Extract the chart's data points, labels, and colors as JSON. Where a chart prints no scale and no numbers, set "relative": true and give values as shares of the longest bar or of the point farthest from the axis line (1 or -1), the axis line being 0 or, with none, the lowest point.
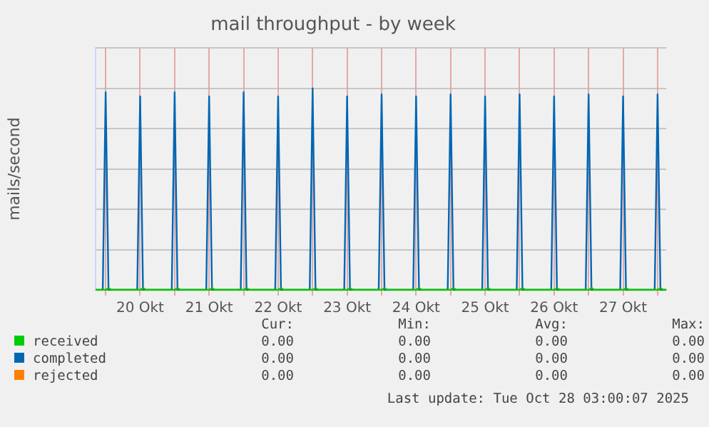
{
  "chart_data": {
    "type": "line",
    "title": "mail throughput - by week",
    "ylabel": "mails/second",
    "relative": true,
    "grid": true,
    "legend": "bottom",
    "marker": "none",
    "x": [
      "2025-10-19T20:30",
      "2025-10-19T23:00",
      "2025-10-20T00:00",
      "2025-10-20T01:00",
      "2025-10-20T02:00",
      "2025-10-20T11:00",
      "2025-10-20T12:00",
      "2025-10-20T13:00",
      "2025-10-20T14:00",
      "2025-10-20T23:00",
      "2025-10-21T00:00",
      "2025-10-21T01:00",
      "2025-10-21T02:00",
      "2025-10-21T11:00",
      "2025-10-21T12:00",
      "2025-10-21T13:00",
      "2025-10-21T14:00",
      "2025-10-21T23:00",
      "2025-10-22T00:00",
      "2025-10-22T01:00",
      "2025-10-22T02:00",
      "2025-10-22T11:00",
      "2025-10-22T12:00",
      "2025-10-22T13:00",
      "2025-10-22T14:00",
      "2025-10-22T23:00",
      "2025-10-23T00:00",
      "2025-10-23T01:00",
      "2025-10-23T02:00",
      "2025-10-23T11:00",
      "2025-10-23T12:00",
      "2025-10-23T13:00",
      "2025-10-23T14:00",
      "2025-10-23T23:00",
      "2025-10-24T00:00",
      "2025-10-24T01:00",
      "2025-10-24T02:00",
      "2025-10-24T11:00",
      "2025-10-24T12:00",
      "2025-10-24T13:00",
      "2025-10-24T14:00",
      "2025-10-24T23:00",
      "2025-10-25T00:00",
      "2025-10-25T01:00",
      "2025-10-25T02:00",
      "2025-10-25T11:00",
      "2025-10-25T12:00",
      "2025-10-25T13:00",
      "2025-10-25T14:00",
      "2025-10-25T23:00",
      "2025-10-26T00:00",
      "2025-10-26T01:00",
      "2025-10-26T02:00",
      "2025-10-26T11:00",
      "2025-10-26T12:00",
      "2025-10-26T13:00",
      "2025-10-26T14:00",
      "2025-10-26T23:00",
      "2025-10-27T00:00",
      "2025-10-27T01:00",
      "2025-10-27T02:00",
      "2025-10-27T11:00",
      "2025-10-27T12:00",
      "2025-10-27T13:00",
      "2025-10-27T14:00",
      "2025-10-27T23:00",
      "2025-10-28T00:00",
      "2025-10-28T01:00",
      "2025-10-28T02:00",
      "2025-10-28T03:00"
    ],
    "xlim": [
      "2025-10-19T20:30",
      "2025-10-28T03:00"
    ],
    "xticks": [
      {
        "value": "2025-10-20T00:00",
        "label": null
      },
      {
        "value": "2025-10-20T12:00",
        "label": "20 Okt"
      },
      {
        "value": "2025-10-21T00:00",
        "label": null
      },
      {
        "value": "2025-10-21T12:00",
        "label": "21 Okt"
      },
      {
        "value": "2025-10-22T00:00",
        "label": null
      },
      {
        "value": "2025-10-22T12:00",
        "label": "22 Okt"
      },
      {
        "value": "2025-10-23T00:00",
        "label": null
      },
      {
        "value": "2025-10-23T12:00",
        "label": "23 Okt"
      },
      {
        "value": "2025-10-24T00:00",
        "label": null
      },
      {
        "value": "2025-10-24T12:00",
        "label": "24 Okt"
      },
      {
        "value": "2025-10-25T00:00",
        "label": null
      },
      {
        "value": "2025-10-25T12:00",
        "label": "25 Okt"
      },
      {
        "value": "2025-10-26T00:00",
        "label": null
      },
      {
        "value": "2025-10-26T12:00",
        "label": "26 Okt"
      },
      {
        "value": "2025-10-27T00:00",
        "label": null
      },
      {
        "value": "2025-10-27T12:00",
        "label": "27 Okt"
      },
      {
        "value": "2025-10-28T00:00",
        "label": null
      }
    ],
    "series": [
      {
        "name": "received",
        "color": "#00cc00",
        "values": [
          0,
          0,
          0,
          0.01,
          0,
          0,
          0,
          0.01,
          0,
          0,
          0,
          0.01,
          0,
          0,
          0,
          0.01,
          0,
          0,
          0,
          0.01,
          0,
          0,
          0,
          0.01,
          0,
          0,
          0,
          0.01,
          0,
          0,
          0,
          0.01,
          0,
          0,
          0,
          0.01,
          0,
          0,
          0,
          0.01,
          0,
          0,
          0,
          0.01,
          0,
          0,
          0,
          0.01,
          0,
          0,
          0,
          0.01,
          0,
          0,
          0,
          0.01,
          0,
          0,
          0,
          0.01,
          0,
          0,
          0,
          0.01,
          0,
          0,
          0,
          0.01,
          0,
          0
        ]
      },
      {
        "name": "completed",
        "color": "#0066b3",
        "values": [
          0,
          0,
          0.98,
          0,
          0,
          0,
          0.96,
          0,
          0,
          0,
          0.98,
          0,
          0,
          0,
          0.96,
          0,
          0,
          0,
          0.98,
          0,
          0,
          0,
          0.96,
          0,
          0,
          0,
          1,
          0,
          0,
          0,
          0.96,
          0,
          0,
          0,
          0.97,
          0,
          0,
          0,
          0.96,
          0,
          0,
          0,
          0.97,
          0,
          0,
          0,
          0.96,
          0,
          0,
          0,
          0.97,
          0,
          0,
          0,
          0.96,
          0,
          0,
          0,
          0.97,
          0,
          0,
          0,
          0.96,
          0,
          0,
          0,
          0.97,
          0,
          0,
          0
        ]
      },
      {
        "name": "rejected",
        "color": "#ff8000",
        "values": [
          0,
          0,
          0,
          0,
          0,
          0,
          0,
          0,
          0,
          0,
          0,
          0,
          0,
          0,
          0,
          0,
          0,
          0,
          0,
          0,
          0,
          0,
          0,
          0,
          0,
          0,
          0,
          0,
          0,
          0,
          0,
          0,
          0,
          0,
          0,
          0,
          0,
          0,
          0,
          0,
          0,
          0,
          0,
          0,
          0,
          0,
          0,
          0,
          0,
          0,
          0,
          0,
          0,
          0,
          0,
          0,
          0,
          0,
          0,
          0,
          0,
          0,
          0,
          0,
          0,
          0,
          0,
          0,
          0,
          0
        ]
      }
    ],
    "annotations": [
      "Cur: Min: Avg: Max:",
      "0.00 0.00 0.00 0.00",
      "0.00 0.00 0.00 0.00",
      "0.00 0.00 0.00 0.00",
      "Last update: Tue Oct 28 03:00:07 2025"
    ]
  }
}
